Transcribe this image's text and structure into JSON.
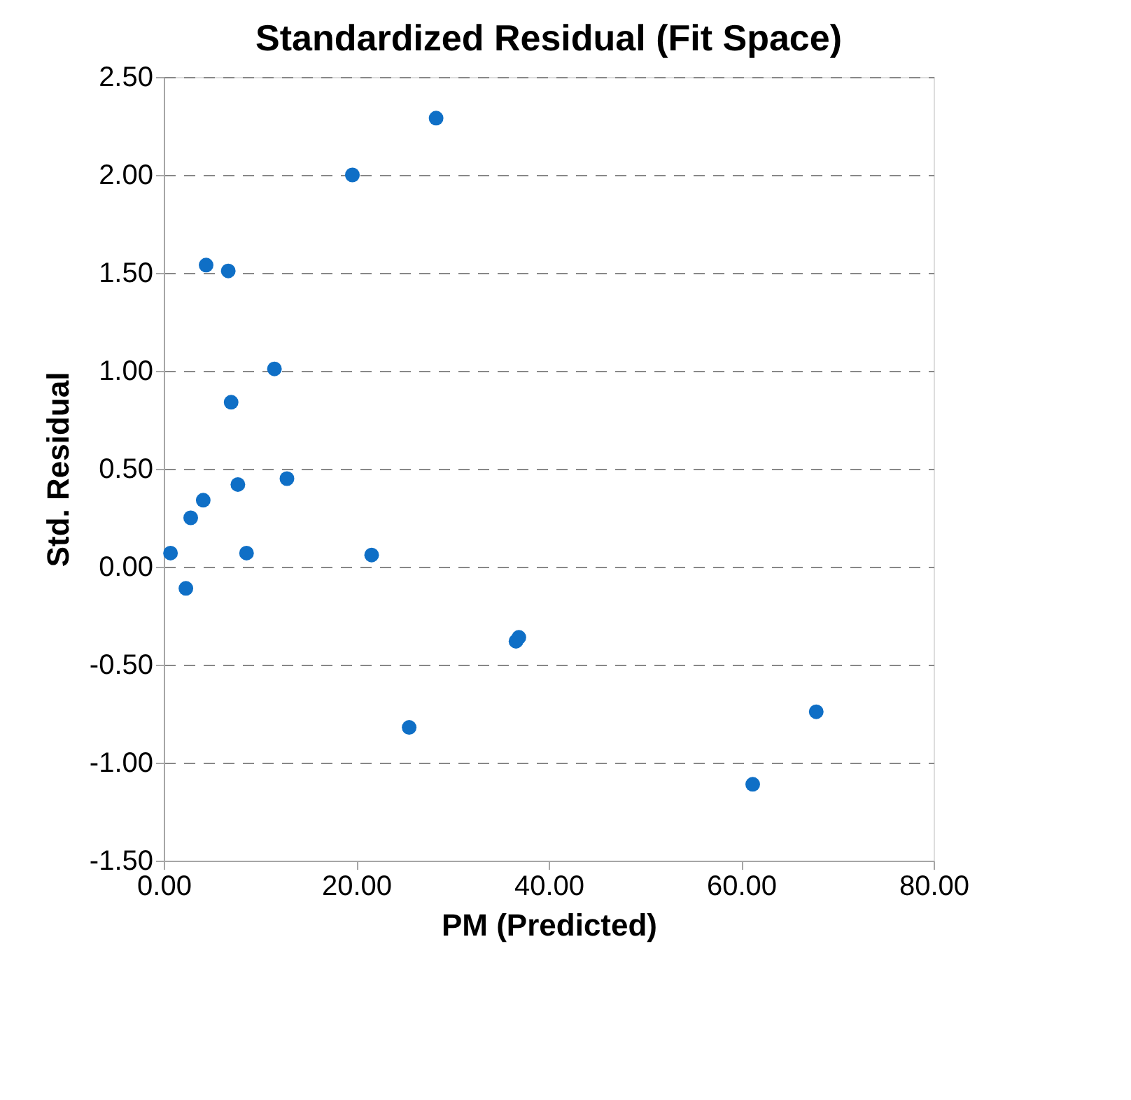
{
  "chart_data": {
    "type": "scatter",
    "title": "Standardized Residual (Fit Space)",
    "xlabel": "PM (Predicted)",
    "ylabel": "Std. Residual",
    "x": [
      0.7,
      2.3,
      2.8,
      4.1,
      4.4,
      6.7,
      7.0,
      7.7,
      8.6,
      11.5,
      12.8,
      19.6,
      21.6,
      25.5,
      28.3,
      36.6,
      36.9,
      61.2,
      67.8
    ],
    "series": [
      {
        "color": "#0f6fc6",
        "values": [
          0.07,
          -0.11,
          0.25,
          0.34,
          1.54,
          1.51,
          0.84,
          0.42,
          0.07,
          1.01,
          0.45,
          2.0,
          0.06,
          -0.82,
          2.29,
          -0.38,
          -0.36,
          -1.11,
          -0.74
        ]
      }
    ],
    "xlim": [
      0,
      80
    ],
    "ylim": [
      -1.5,
      2.5
    ],
    "xticks": [
      {
        "value": 0,
        "label": "0.00"
      },
      {
        "value": 20,
        "label": "20.00"
      },
      {
        "value": 40,
        "label": "40.00"
      },
      {
        "value": 60,
        "label": "60.00"
      },
      {
        "value": 80,
        "label": "80.00"
      }
    ],
    "yticks": [
      {
        "value": -1.5,
        "label": "-1.50"
      },
      {
        "value": -1,
        "label": "-1.00"
      },
      {
        "value": -0.5,
        "label": "-0.50"
      },
      {
        "value": 0,
        "label": "0.00"
      },
      {
        "value": 0.5,
        "label": "0.50"
      },
      {
        "value": 1,
        "label": "1.00"
      },
      {
        "value": 1.5,
        "label": "1.50"
      },
      {
        "value": 2,
        "label": "2.00"
      },
      {
        "value": 2.5,
        "label": "2.50"
      }
    ],
    "grid": "y",
    "marker": "circle"
  }
}
